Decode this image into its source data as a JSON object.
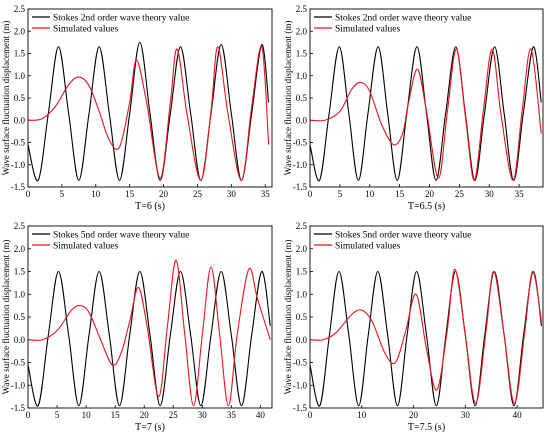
{
  "chart_data": [
    {
      "type": "line",
      "xlabel": "T=6 (s)",
      "ylabel": "Wave surface fluctuation displacement (m)",
      "xlim": [
        0,
        36
      ],
      "ylim": [
        -1.5,
        2.5
      ],
      "xticks": [
        "0",
        "5",
        "10",
        "15",
        "20",
        "25",
        "30",
        "35"
      ],
      "yticks": [
        "-1.5",
        "-1.0",
        "-0.5",
        "0.0",
        "0.5",
        "1.0",
        "1.5",
        "2.0",
        "2.5"
      ],
      "legend": "top-left",
      "series": [
        {
          "name": "Stokes 2nd order wave theory value",
          "color": "#000000",
          "x": [
            0,
            1.5,
            3,
            4.5,
            6,
            7.5,
            9,
            10.5,
            12,
            13.5,
            15,
            16.5,
            18,
            19.5,
            21,
            22.5,
            24,
            25.5,
            27,
            28.5,
            30,
            31.5,
            33,
            34.5,
            35.5
          ],
          "y": [
            -0.55,
            -1.35,
            0.15,
            1.65,
            0.15,
            -1.35,
            0.15,
            1.65,
            0.15,
            -1.35,
            0.15,
            1.75,
            0.15,
            -1.35,
            0.15,
            1.65,
            0.15,
            -1.35,
            0.15,
            1.7,
            0.15,
            -1.35,
            0.15,
            1.7,
            0.4
          ]
        },
        {
          "name": "Simulated values",
          "color": "#e8141e",
          "x": [
            0,
            2,
            4,
            6,
            7.5,
            9,
            10.5,
            12,
            13.5,
            15,
            16,
            17.5,
            19.5,
            21,
            22,
            23.5,
            25.5,
            27,
            28,
            29.5,
            31.5,
            33,
            34.5,
            35.5
          ],
          "y": [
            0.0,
            0.03,
            0.3,
            0.8,
            0.97,
            0.78,
            0.2,
            -0.45,
            -0.6,
            0.4,
            1.35,
            0.4,
            -1.3,
            0.4,
            1.6,
            0.1,
            -1.35,
            0.2,
            1.65,
            0.15,
            -1.35,
            0.3,
            1.65,
            -0.55
          ]
        }
      ]
    },
    {
      "type": "line",
      "xlabel": "T=6.5 (s)",
      "ylabel": "Wave surface fluctuation displacement (m)",
      "xlim": [
        0,
        39
      ],
      "ylim": [
        -1.5,
        2.5
      ],
      "xticks": [
        "0",
        "5",
        "10",
        "15",
        "20",
        "25",
        "30",
        "35"
      ],
      "yticks": [
        "-1.5",
        "-1.0",
        "-0.5",
        "0.0",
        "0.5",
        "1.0",
        "1.5",
        "2.0",
        "2.5"
      ],
      "legend": "top-left",
      "series": [
        {
          "name": "Stokes 2nd order wave theory value",
          "color": "#000000",
          "x": [
            0,
            1.6,
            3.2,
            4.9,
            6.5,
            8.1,
            9.7,
            11.4,
            13,
            14.6,
            16.2,
            17.9,
            19.5,
            21.1,
            22.7,
            24.4,
            26,
            27.6,
            29.2,
            30.9,
            32.5,
            34.1,
            35.7,
            37.4,
            38.7
          ],
          "y": [
            -0.55,
            -1.35,
            0.15,
            1.65,
            0.15,
            -1.35,
            0.15,
            1.65,
            0.15,
            -1.35,
            0.15,
            1.65,
            0.15,
            -1.35,
            0.15,
            1.65,
            0.15,
            -1.35,
            0.15,
            1.65,
            0.15,
            -1.35,
            0.15,
            1.65,
            0.4
          ]
        },
        {
          "name": "Simulated values",
          "color": "#e8141e",
          "x": [
            0,
            2.5,
            5,
            7,
            8.5,
            10,
            12,
            14,
            15.5,
            16.5,
            18,
            19.5,
            21.5,
            23,
            24.5,
            26,
            27.5,
            29,
            30.5,
            32,
            34,
            35.5,
            37,
            38.7
          ],
          "y": [
            0.0,
            0.0,
            0.2,
            0.7,
            0.85,
            0.65,
            -0.1,
            -0.55,
            -0.3,
            0.4,
            1.15,
            0.2,
            -1.3,
            0.2,
            1.6,
            0.1,
            -1.35,
            0.2,
            1.6,
            0.1,
            -1.35,
            0.2,
            1.6,
            -0.3
          ]
        }
      ]
    },
    {
      "type": "line",
      "xlabel": "T=7 (s)",
      "ylabel": "Wave surface fluctuation displacement (m)",
      "xlim": [
        0,
        42
      ],
      "ylim": [
        -1.5,
        2.5
      ],
      "xticks": [
        "0",
        "5",
        "10",
        "15",
        "20",
        "25",
        "30",
        "35",
        "40"
      ],
      "yticks": [
        "-1.5",
        "-1.0",
        "-0.5",
        "0.0",
        "0.5",
        "1.0",
        "1.5",
        "2.0",
        "2.5"
      ],
      "legend": "top-left",
      "series": [
        {
          "name": "Stokes 5nd order wave theory value",
          "color": "#000000",
          "x": [
            0,
            1.75,
            3.5,
            5.25,
            7,
            8.75,
            10.5,
            12.25,
            14,
            15.75,
            17.5,
            19.25,
            21,
            22.75,
            24.5,
            26.25,
            28,
            29.75,
            31.5,
            33.25,
            35,
            36.75,
            38.5,
            40.25,
            41.7
          ],
          "y": [
            -0.55,
            -1.45,
            0.1,
            1.5,
            0.1,
            -1.45,
            0.1,
            1.5,
            0.1,
            -1.45,
            0.1,
            1.5,
            0.1,
            -1.45,
            0.1,
            1.5,
            0.1,
            -1.45,
            0.1,
            1.5,
            0.1,
            -1.45,
            0.1,
            1.5,
            0.3
          ]
        },
        {
          "name": "Simulated values",
          "color": "#e8141e",
          "x": [
            0,
            2.5,
            5,
            7.5,
            9,
            10.5,
            12.5,
            14.5,
            16,
            17.5,
            19,
            20.5,
            22.5,
            24,
            25.5,
            27,
            28.5,
            30,
            31.5,
            33,
            34.5,
            36,
            38,
            39.5,
            41.7
          ],
          "y": [
            0.0,
            0.0,
            0.2,
            0.65,
            0.75,
            0.6,
            0.0,
            -0.55,
            -0.3,
            0.4,
            1.15,
            0.3,
            -1.25,
            0.3,
            1.75,
            0.1,
            -1.45,
            0.1,
            1.6,
            0.1,
            -1.45,
            0.1,
            1.55,
            0.9,
            0.0
          ]
        }
      ]
    },
    {
      "type": "line",
      "xlabel": "T=7.5 (s)",
      "ylabel": "Wave surface fluctuation displacement (m)",
      "xlim": [
        0,
        45
      ],
      "ylim": [
        -1.5,
        2.5
      ],
      "xticks": [
        "0",
        "10",
        "20",
        "30",
        "40"
      ],
      "yticks": [
        "-1.5",
        "-1.0",
        "-0.5",
        "0.0",
        "0.5",
        "1.0",
        "1.5",
        "2.0",
        "2.5"
      ],
      "legend": "top-left",
      "series": [
        {
          "name": "Stokes 5nd order wave theory value",
          "color": "#000000",
          "x": [
            0,
            1.9,
            3.75,
            5.6,
            7.5,
            9.4,
            11.25,
            13.1,
            15,
            16.9,
            18.75,
            20.6,
            22.5,
            24.4,
            26.25,
            28.1,
            30,
            31.9,
            33.75,
            35.6,
            37.5,
            39.4,
            41.25,
            43.1,
            44.7
          ],
          "y": [
            -0.55,
            -1.45,
            0.1,
            1.5,
            0.1,
            -1.45,
            0.1,
            1.5,
            0.1,
            -1.45,
            0.1,
            1.5,
            0.1,
            -1.45,
            0.1,
            1.5,
            0.1,
            -1.45,
            0.1,
            1.5,
            0.1,
            -1.45,
            0.1,
            1.5,
            0.3
          ]
        },
        {
          "name": "Simulated values",
          "color": "#e8141e",
          "x": [
            0,
            2.5,
            5,
            8,
            10,
            12,
            14.5,
            16.5,
            18.5,
            20.5,
            22.5,
            24.5,
            26.5,
            28,
            30,
            32,
            34,
            35.5,
            37.5,
            39.5,
            41.5,
            43,
            44.7
          ],
          "y": [
            0.0,
            0.0,
            0.15,
            0.55,
            0.65,
            0.4,
            -0.3,
            -0.5,
            0.2,
            1.0,
            -0.2,
            -1.1,
            0.2,
            1.55,
            0.1,
            -1.4,
            0.2,
            1.5,
            0.1,
            -1.4,
            0.2,
            1.5,
            0.4
          ]
        }
      ]
    }
  ]
}
